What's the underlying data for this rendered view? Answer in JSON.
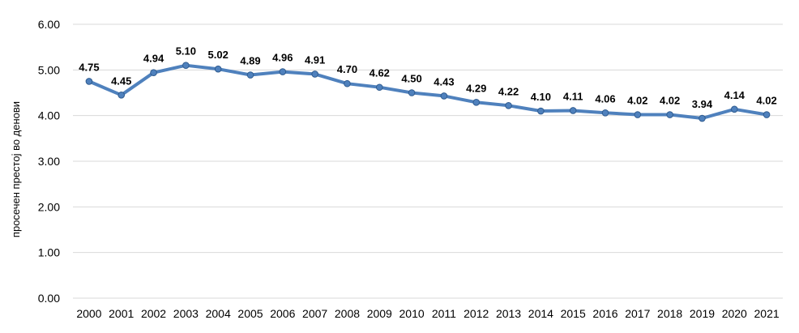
{
  "chart_data": {
    "type": "line",
    "title": "",
    "xlabel": "",
    "ylabel": "просечен престој во денови",
    "ylim": [
      0,
      6
    ],
    "yticks": [
      "0.00",
      "1.00",
      "2.00",
      "3.00",
      "4.00",
      "5.00",
      "6.00"
    ],
    "grid": true,
    "legend": "none",
    "x": [
      "2000",
      "2001",
      "2002",
      "2003",
      "2004",
      "2005",
      "2006",
      "2007",
      "2008",
      "2009",
      "2010",
      "2011",
      "2012",
      "2013",
      "2014",
      "2015",
      "2016",
      "2017",
      "2018",
      "2019",
      "2020",
      "2021"
    ],
    "series": [
      {
        "values": [
          4.75,
          4.45,
          4.94,
          5.1,
          5.02,
          4.89,
          4.96,
          4.91,
          4.7,
          4.62,
          4.5,
          4.43,
          4.29,
          4.22,
          4.1,
          4.11,
          4.06,
          4.02,
          4.02,
          3.94,
          4.14,
          4.02
        ],
        "labels": [
          "4.75",
          "4.45",
          "4.94",
          "5.10",
          "5.02",
          "4.89",
          "4.96",
          "4.91",
          "4.70",
          "4.62",
          "4.50",
          "4.43",
          "4.29",
          "4.22",
          "4.10",
          "4.11",
          "4.06",
          "4.02",
          "4.02",
          "3.94",
          "4.14",
          "4.02"
        ],
        "color": "#4f81bd"
      }
    ],
    "colors": {
      "line": "#4f81bd",
      "marker": "#4f81bd",
      "grid": "#d9d9d9"
    }
  }
}
